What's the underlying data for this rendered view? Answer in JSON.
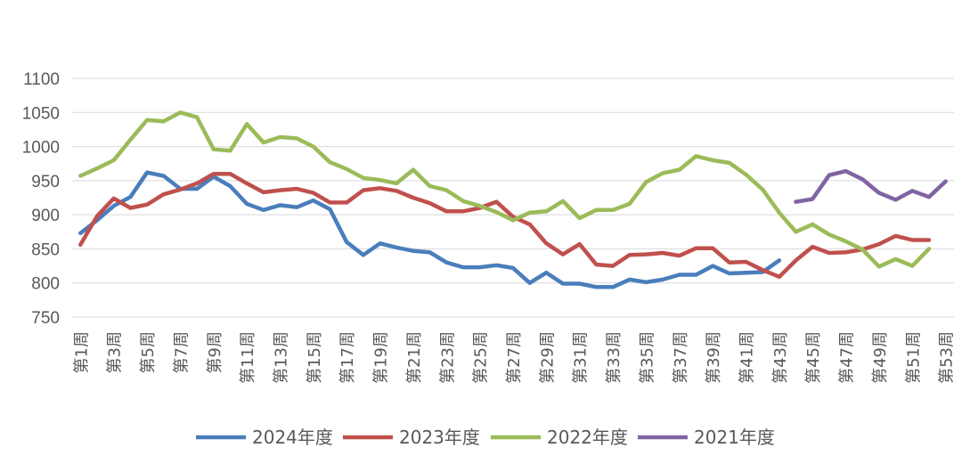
{
  "chart_data": {
    "type": "line",
    "title": "",
    "xlabel": "",
    "ylabel": "",
    "ylim": [
      750,
      1100
    ],
    "yticks": [
      750,
      800,
      850,
      900,
      950,
      1000,
      1050,
      1100
    ],
    "grid": "horizontal",
    "legend_position": "bottom",
    "x": [
      "第1周",
      "第2周",
      "第3周",
      "第4周",
      "第5周",
      "第6周",
      "第7周",
      "第8周",
      "第9周",
      "第10周",
      "第11周",
      "第12周",
      "第13周",
      "第14周",
      "第15周",
      "第16周",
      "第17周",
      "第18周",
      "第19周",
      "第20周",
      "第21周",
      "第22周",
      "第23周",
      "第24周",
      "第25周",
      "第26周",
      "第27周",
      "第28周",
      "第29周",
      "第30周",
      "第31周",
      "第32周",
      "第33周",
      "第34周",
      "第35周",
      "第36周",
      "第37周",
      "第38周",
      "第39周",
      "第40周",
      "第41周",
      "第42周",
      "第43周",
      "第44周",
      "第45周",
      "第46周",
      "第47周",
      "第48周",
      "第49周",
      "第50周",
      "第51周",
      "第52周",
      "第53周"
    ],
    "x_tick_labels": [
      "第1周",
      "第3周",
      "第5周",
      "第7周",
      "第9周",
      "第11周",
      "第13周",
      "第15周",
      "第17周",
      "第19周",
      "第21周",
      "第23周",
      "第25周",
      "第27周",
      "第29周",
      "第31周",
      "第33周",
      "第35周",
      "第37周",
      "第39周",
      "第41周",
      "第43周",
      "第45周",
      "第47周",
      "第49周",
      "第51周",
      "第53周"
    ],
    "series": [
      {
        "name": "2024年度",
        "color": "#4a7ebb",
        "values": [
          873,
          892,
          913,
          926,
          962,
          957,
          938,
          938,
          956,
          942,
          916,
          907,
          914,
          911,
          921,
          908,
          860,
          841,
          858,
          852,
          847,
          845,
          830,
          823,
          823,
          826,
          822,
          800,
          815,
          799,
          799,
          794,
          794,
          805,
          801,
          805,
          812,
          812,
          825,
          814,
          815,
          816,
          833,
          null,
          null,
          null,
          null,
          null,
          null,
          null,
          null,
          null,
          null
        ]
      },
      {
        "name": "2023年度",
        "color": "#c0504d",
        "values": [
          856,
          898,
          924,
          910,
          915,
          930,
          937,
          946,
          960,
          960,
          946,
          933,
          936,
          938,
          932,
          918,
          918,
          936,
          939,
          935,
          925,
          917,
          905,
          905,
          910,
          919,
          897,
          886,
          858,
          842,
          857,
          827,
          825,
          841,
          842,
          844,
          840,
          851,
          851,
          830,
          831,
          819,
          809,
          833,
          853,
          844,
          845,
          849,
          857,
          869,
          863,
          863,
          null
        ]
      },
      {
        "name": "2022年度",
        "color": "#9bbb59",
        "values": [
          957,
          968,
          980,
          1010,
          1039,
          1037,
          1050,
          1043,
          996,
          994,
          1033,
          1006,
          1014,
          1012,
          1000,
          977,
          967,
          954,
          951,
          946,
          966,
          942,
          936,
          920,
          913,
          904,
          892,
          903,
          905,
          920,
          895,
          907,
          907,
          916,
          948,
          961,
          966,
          986,
          980,
          976,
          959,
          937,
          903,
          875,
          886,
          871,
          861,
          849,
          824,
          835,
          825,
          850,
          null
        ]
      },
      {
        "name": "2021年度",
        "color": "#8064a2",
        "values": [
          null,
          null,
          null,
          null,
          null,
          null,
          null,
          null,
          null,
          null,
          null,
          null,
          null,
          null,
          null,
          null,
          null,
          null,
          null,
          null,
          null,
          null,
          null,
          null,
          null,
          null,
          null,
          null,
          null,
          null,
          null,
          null,
          null,
          null,
          null,
          null,
          null,
          null,
          null,
          null,
          null,
          null,
          null,
          919,
          923,
          958,
          964,
          952,
          932,
          922,
          935,
          926,
          949
        ]
      }
    ]
  }
}
